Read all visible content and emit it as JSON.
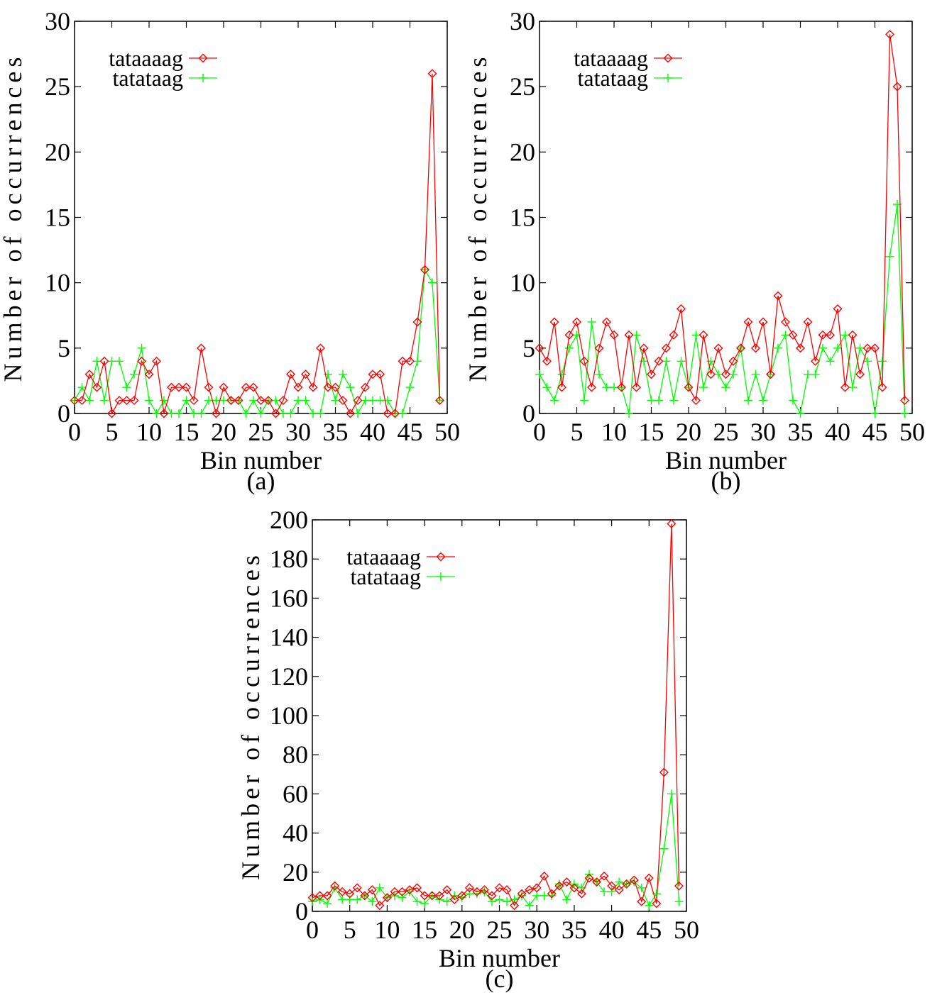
{
  "chart_data": [
    {
      "type": "line",
      "panel_label": "(a)",
      "xlabel": "Bin number",
      "ylabel": "Number of occurrences",
      "xlim": [
        0,
        50
      ],
      "ylim": [
        0,
        30
      ],
      "xticks": [
        "0",
        "5",
        "10",
        "15",
        "20",
        "25",
        "30",
        "35",
        "40",
        "45",
        "50"
      ],
      "yticks": [
        "0",
        "5",
        "10",
        "15",
        "20",
        "25",
        "30"
      ],
      "legend_position": "top-left",
      "series": [
        {
          "name": "tataaaag",
          "color": "#ff0000",
          "marker": "diamond",
          "x": [
            0,
            1,
            2,
            3,
            4,
            5,
            6,
            7,
            8,
            9,
            10,
            11,
            12,
            13,
            14,
            15,
            16,
            17,
            18,
            19,
            20,
            21,
            22,
            23,
            24,
            25,
            26,
            27,
            28,
            29,
            30,
            31,
            32,
            33,
            34,
            35,
            36,
            37,
            38,
            39,
            40,
            41,
            42,
            43,
            44,
            45,
            46,
            47,
            48,
            49
          ],
          "values": [
            1,
            1,
            3,
            2,
            4,
            0,
            1,
            1,
            1,
            4,
            3,
            4,
            0,
            2,
            2,
            2,
            1,
            5,
            2,
            0,
            2,
            1,
            1,
            2,
            2,
            1,
            1,
            0,
            1,
            3,
            2,
            3,
            2,
            5,
            2,
            2,
            1,
            0,
            1,
            2,
            3,
            3,
            0,
            0,
            4,
            4,
            7,
            11,
            26,
            1
          ]
        },
        {
          "name": "tatataag",
          "color": "#00ff00",
          "marker": "plus",
          "x": [
            0,
            1,
            2,
            3,
            4,
            5,
            6,
            7,
            8,
            9,
            10,
            11,
            12,
            13,
            14,
            15,
            16,
            17,
            18,
            19,
            20,
            21,
            22,
            23,
            24,
            25,
            26,
            27,
            28,
            29,
            30,
            31,
            32,
            33,
            34,
            35,
            36,
            37,
            38,
            39,
            40,
            41,
            42,
            43,
            44,
            45,
            46,
            47,
            48,
            49
          ],
          "values": [
            1,
            2,
            1,
            4,
            1,
            4,
            4,
            2,
            3,
            5,
            1,
            0,
            1,
            0,
            0,
            1,
            0,
            0,
            1,
            1,
            1,
            1,
            1,
            0,
            1,
            0,
            1,
            1,
            0,
            0,
            1,
            1,
            0,
            0,
            3,
            1,
            3,
            2,
            0,
            1,
            1,
            1,
            1,
            0,
            0,
            2,
            4,
            11,
            10,
            1
          ]
        }
      ]
    },
    {
      "type": "line",
      "panel_label": "(b)",
      "xlabel": "Bin number",
      "ylabel": "Number of occurrences",
      "xlim": [
        0,
        50
      ],
      "ylim": [
        0,
        30
      ],
      "xticks": [
        "0",
        "5",
        "10",
        "15",
        "20",
        "25",
        "30",
        "35",
        "40",
        "45",
        "50"
      ],
      "yticks": [
        "0",
        "5",
        "10",
        "15",
        "20",
        "25",
        "30"
      ],
      "legend_position": "top-left",
      "series": [
        {
          "name": "tataaaag",
          "color": "#ff0000",
          "marker": "diamond",
          "x": [
            0,
            1,
            2,
            3,
            4,
            5,
            6,
            7,
            8,
            9,
            10,
            11,
            12,
            13,
            14,
            15,
            16,
            17,
            18,
            19,
            20,
            21,
            22,
            23,
            24,
            25,
            26,
            27,
            28,
            29,
            30,
            31,
            32,
            33,
            34,
            35,
            36,
            37,
            38,
            39,
            40,
            41,
            42,
            43,
            44,
            45,
            46,
            47,
            48,
            49
          ],
          "values": [
            5,
            4,
            7,
            2,
            6,
            7,
            4,
            2,
            5,
            7,
            6,
            2,
            6,
            2,
            5,
            3,
            4,
            5,
            6,
            8,
            2,
            1,
            6,
            3,
            5,
            3,
            4,
            5,
            7,
            5,
            7,
            3,
            9,
            7,
            6,
            5,
            7,
            4,
            6,
            6,
            8,
            2,
            6,
            3,
            5,
            5,
            2,
            29,
            25,
            1
          ]
        },
        {
          "name": "tatataag",
          "color": "#00ff00",
          "marker": "plus",
          "x": [
            0,
            1,
            2,
            3,
            4,
            5,
            6,
            7,
            8,
            9,
            10,
            11,
            12,
            13,
            14,
            15,
            16,
            17,
            18,
            19,
            20,
            21,
            22,
            23,
            24,
            25,
            26,
            27,
            28,
            29,
            30,
            31,
            32,
            33,
            34,
            35,
            36,
            37,
            38,
            39,
            40,
            41,
            42,
            43,
            44,
            45,
            46,
            47,
            48,
            49
          ],
          "values": [
            3,
            2,
            1,
            3,
            5,
            6,
            1,
            7,
            3,
            2,
            2,
            2,
            0,
            6,
            4,
            1,
            1,
            4,
            1,
            4,
            2,
            6,
            2,
            4,
            3,
            2,
            3,
            5,
            1,
            3,
            1,
            3,
            5,
            6,
            1,
            0,
            3,
            3,
            5,
            4,
            5,
            6,
            2,
            5,
            4,
            0,
            4,
            12,
            16,
            0
          ]
        }
      ]
    },
    {
      "type": "line",
      "panel_label": "(c)",
      "xlabel": "Bin number",
      "ylabel": "Number of occurrences",
      "xlim": [
        0,
        50
      ],
      "ylim": [
        0,
        200
      ],
      "xticks": [
        "0",
        "5",
        "10",
        "15",
        "20",
        "25",
        "30",
        "35",
        "40",
        "45",
        "50"
      ],
      "yticks": [
        "0",
        "20",
        "40",
        "60",
        "80",
        "100",
        "120",
        "140",
        "160",
        "180",
        "200"
      ],
      "legend_position": "top-left",
      "series": [
        {
          "name": "tataaaag",
          "color": "#ff0000",
          "marker": "diamond",
          "x": [
            0,
            1,
            2,
            3,
            4,
            5,
            6,
            7,
            8,
            9,
            10,
            11,
            12,
            13,
            14,
            15,
            16,
            17,
            18,
            19,
            20,
            21,
            22,
            23,
            24,
            25,
            26,
            27,
            28,
            29,
            30,
            31,
            32,
            33,
            34,
            35,
            36,
            37,
            38,
            39,
            40,
            41,
            42,
            43,
            44,
            45,
            46,
            47,
            48,
            49
          ],
          "values": [
            7,
            8,
            8,
            13,
            10,
            9,
            12,
            8,
            11,
            3,
            7,
            10,
            10,
            11,
            12,
            8,
            8,
            8,
            11,
            6,
            8,
            12,
            10,
            11,
            8,
            12,
            11,
            3,
            9,
            11,
            12,
            18,
            9,
            13,
            15,
            12,
            9,
            17,
            15,
            18,
            13,
            11,
            14,
            16,
            5,
            17,
            4,
            71,
            198,
            13
          ]
        },
        {
          "name": "tatataag",
          "color": "#00ff00",
          "marker": "plus",
          "x": [
            0,
            1,
            2,
            3,
            4,
            5,
            6,
            7,
            8,
            9,
            10,
            11,
            12,
            13,
            14,
            15,
            16,
            17,
            18,
            19,
            20,
            21,
            22,
            23,
            24,
            25,
            26,
            27,
            28,
            29,
            30,
            31,
            32,
            33,
            34,
            35,
            36,
            37,
            38,
            39,
            40,
            41,
            42,
            43,
            44,
            45,
            46,
            47,
            48,
            49
          ],
          "values": [
            5,
            6,
            4,
            12,
            6,
            6,
            6,
            8,
            5,
            12,
            7,
            8,
            7,
            10,
            5,
            4,
            8,
            6,
            5,
            8,
            7,
            9,
            9,
            10,
            5,
            6,
            5,
            6,
            8,
            3,
            8,
            8,
            8,
            14,
            6,
            14,
            12,
            19,
            15,
            10,
            10,
            15,
            14,
            15,
            12,
            3,
            9,
            32,
            60,
            5
          ]
        }
      ]
    }
  ]
}
